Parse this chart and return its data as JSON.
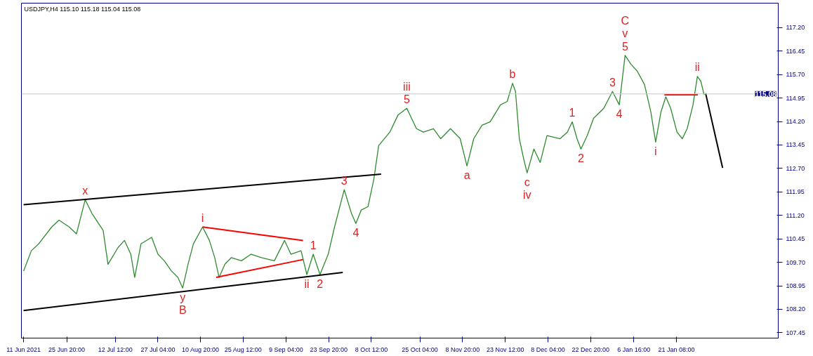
{
  "chart_data": {
    "type": "line",
    "title": "USDJPY,H4  115.10 115.18 115.04 115.08",
    "xlim": [
      "2021-06-10T06:00",
      "2022-02-25T07:00"
    ],
    "ylim": [
      107.28,
      117.98
    ],
    "xticks": [
      {
        "value": "2021-06-11T00:00",
        "label": "11 Jun 2021"
      },
      {
        "value": "2021-06-25T20:00",
        "label": "25 Jun 20:00"
      },
      {
        "value": "2021-07-12T12:00",
        "label": "12 Jul 12:00"
      },
      {
        "value": "2021-07-27T04:00",
        "label": "27 Jul 04:00"
      },
      {
        "value": "2021-08-10T20:00",
        "label": "10 Aug 20:00"
      },
      {
        "value": "2021-08-25T12:00",
        "label": "25 Aug 12:00"
      },
      {
        "value": "2021-09-09T04:00",
        "label": "9 Sep 04:00"
      },
      {
        "value": "2021-09-23T20:00",
        "label": "23 Sep 20:00"
      },
      {
        "value": "2021-10-08T12:00",
        "label": "8 Oct 12:00"
      },
      {
        "value": "2021-10-25T04:00",
        "label": "25 Oct 04:00"
      },
      {
        "value": "2021-11-08T20:00",
        "label": "8 Nov 20:00"
      },
      {
        "value": "2021-11-23T12:00",
        "label": "23 Nov 12:00"
      },
      {
        "value": "2021-12-08T04:00",
        "label": "8 Dec 04:00"
      },
      {
        "value": "2021-12-22T20:00",
        "label": "22 Dec 20:00"
      },
      {
        "value": "2022-01-06T16:00",
        "label": "6 Jan 16:00"
      },
      {
        "value": "2022-01-21T08:00",
        "label": "21 Jan 08:00"
      }
    ],
    "yticks": [
      {
        "value": 107.45,
        "label": "107.45"
      },
      {
        "value": 108.2,
        "label": "108.20"
      },
      {
        "value": 108.95,
        "label": "108.95"
      },
      {
        "value": 109.7,
        "label": "109.70"
      },
      {
        "value": 110.45,
        "label": "110.45"
      },
      {
        "value": 111.2,
        "label": "111.20"
      },
      {
        "value": 111.95,
        "label": "111.95"
      },
      {
        "value": 112.7,
        "label": "112.70"
      },
      {
        "value": 113.45,
        "label": "113.45"
      },
      {
        "value": 114.2,
        "label": "114.20"
      },
      {
        "value": 114.95,
        "label": "114.95"
      },
      {
        "value": 115.7,
        "label": "115.70"
      },
      {
        "value": 116.45,
        "label": "116.45"
      },
      {
        "value": 117.2,
        "label": "117.20"
      }
    ],
    "grid": false,
    "series": [
      {
        "color": "#2e8b2e",
        "x": [
          "2021-06-11T00:00",
          "2021-06-13T16:00",
          "2021-06-16T04:00",
          "2021-06-20T16:00",
          "2021-06-23T04:00",
          "2021-06-26T16:00",
          "2021-06-29T04:00",
          "2021-07-02T04:00",
          "2021-07-04T12:00",
          "2021-07-08T08:00",
          "2021-07-10T00:00",
          "2021-07-13T12:00",
          "2021-07-15T16:00",
          "2021-07-17T20:00",
          "2021-07-19T04:00",
          "2021-07-21T08:00",
          "2021-07-25T00:00",
          "2021-07-27T04:00",
          "2021-07-29T08:00",
          "2021-07-31T20:00",
          "2021-08-03T00:00",
          "2021-08-04T16:00",
          "2021-08-06T12:00",
          "2021-08-08T08:00",
          "2021-08-11T12:00",
          "2021-08-13T20:00",
          "2021-08-15T16:00",
          "2021-08-17T04:00",
          "2021-08-19T04:00",
          "2021-08-21T08:00",
          "2021-08-24T20:00",
          "2021-08-28T04:00",
          "2021-08-31T16:00",
          "2021-09-05T04:00",
          "2021-09-08T16:00",
          "2021-09-10T20:00",
          "2021-09-14T08:00",
          "2021-09-16T08:00",
          "2021-09-18T12:00",
          "2021-09-20T20:00",
          "2021-09-23T16:00",
          "2021-09-25T20:00",
          "2021-09-29T04:00",
          "2021-10-01T16:00",
          "2021-10-03T04:00",
          "2021-10-05T00:00",
          "2021-10-07T08:00",
          "2021-10-09T08:00",
          "2021-10-11T00:00",
          "2021-10-14T20:00",
          "2021-10-17T16:00",
          "2021-10-20T16:00",
          "2021-10-24T00:00",
          "2021-10-26T08:00",
          "2021-10-29T20:00",
          "2021-11-01T08:00",
          "2021-11-04T16:00",
          "2021-11-08T00:00",
          "2021-11-10T08:00",
          "2021-11-12T16:00",
          "2021-11-15T12:00",
          "2021-11-18T08:00",
          "2021-11-21T20:00",
          "2021-11-24T04:00",
          "2021-11-26T00:00",
          "2021-11-27T00:00",
          "2021-11-28T08:00",
          "2021-11-29T20:00",
          "2021-12-01T00:00",
          "2021-12-03T08:00",
          "2021-12-05T12:00",
          "2021-12-07T20:00",
          "2021-12-12T08:00",
          "2021-12-14T20:00",
          "2021-12-16T12:00",
          "2021-12-18T04:00",
          "2021-12-19T12:00",
          "2021-12-21T16:00",
          "2021-12-23T20:00",
          "2021-12-27T08:00",
          "2021-12-30T08:00",
          "2022-01-01T16:00",
          "2022-01-03T16:00",
          "2022-01-05T16:00",
          "2022-01-07T20:00",
          "2022-01-10T08:00",
          "2022-01-12T12:00",
          "2022-01-14T04:00",
          "2022-01-16T00:00",
          "2022-01-17T16:00",
          "2022-01-19T08:00",
          "2022-01-21T12:00",
          "2022-01-23T08:00",
          "2022-01-25T00:00",
          "2022-01-27T00:00",
          "2022-01-28T12:00",
          "2022-01-29T16:00",
          "2022-01-30T20:00"
        ],
        "values": [
          109.42,
          110.07,
          110.29,
          110.83,
          111.05,
          110.83,
          110.61,
          111.7,
          111.26,
          110.72,
          109.64,
          110.18,
          110.4,
          109.96,
          109.22,
          110.29,
          110.5,
          109.96,
          109.75,
          109.42,
          109.22,
          108.88,
          109.64,
          110.29,
          110.83,
          110.4,
          109.85,
          109.22,
          109.64,
          109.85,
          109.75,
          109.96,
          109.85,
          109.75,
          110.4,
          109.96,
          110.07,
          109.31,
          109.96,
          109.31,
          109.96,
          110.83,
          112.02,
          111.26,
          110.94,
          111.37,
          111.48,
          112.35,
          113.43,
          113.86,
          114.41,
          114.62,
          113.97,
          113.86,
          113.97,
          113.65,
          113.97,
          113.65,
          112.78,
          113.65,
          114.08,
          114.19,
          114.73,
          114.84,
          115.42,
          115.16,
          113.65,
          113.0,
          112.56,
          113.32,
          112.89,
          113.75,
          113.65,
          113.86,
          114.19,
          113.65,
          113.32,
          113.75,
          114.3,
          114.62,
          115.16,
          114.73,
          116.31,
          116.03,
          115.81,
          115.38,
          114.51,
          113.54,
          114.51,
          114.99,
          114.62,
          113.86,
          113.65,
          113.97,
          114.73,
          115.64,
          115.49,
          115.05
        ]
      },
      {
        "color": "#000000",
        "x": [
          "2021-06-11T00:00",
          "2021-10-11T20:00"
        ],
        "values": [
          111.54,
          112.52
        ]
      },
      {
        "color": "#000000",
        "x": [
          "2021-06-11T00:00",
          "2021-09-28T16:00"
        ],
        "values": [
          108.16,
          109.38
        ]
      },
      {
        "color": "#ff0000",
        "x": [
          "2021-08-11T12:00",
          "2021-09-15T00:00"
        ],
        "values": [
          110.83,
          110.4
        ]
      },
      {
        "color": "#ff0000",
        "x": [
          "2021-08-16T04:00",
          "2021-09-15T00:00"
        ],
        "values": [
          109.22,
          109.79
        ]
      },
      {
        "color": "#ff0000",
        "x": [
          "2022-01-17T04:00",
          "2022-01-28T16:00"
        ],
        "values": [
          115.05,
          115.05
        ]
      },
      {
        "color": "#000000",
        "x": [
          "2022-01-31T08:00",
          "2022-02-06T04:00"
        ],
        "values": [
          115.1,
          112.72
        ]
      }
    ],
    "ref_lines": [
      {
        "axis": "y",
        "value": 115.08,
        "label": "115.08",
        "color": "#c8c8c8"
      }
    ],
    "annotations": [
      {
        "text": "x",
        "x": "2021-07-02T04:00",
        "y": 111.7
      },
      {
        "text": "y",
        "x": "2021-08-04T16:00",
        "y": 108.88
      },
      {
        "text": "B",
        "x": "2021-08-04T16:00",
        "y": 108.88
      },
      {
        "text": "i",
        "x": "2021-08-11T12:00",
        "y": 110.83
      },
      {
        "text": "ii",
        "x": "2021-09-16T08:00",
        "y": 109.31
      },
      {
        "text": "1",
        "x": "2021-09-18T12:00",
        "y": 109.96
      },
      {
        "text": "2",
        "x": "2021-09-20T20:00",
        "y": 109.31
      },
      {
        "text": "3",
        "x": "2021-09-29T04:00",
        "y": 112.02
      },
      {
        "text": "4",
        "x": "2021-10-03T04:00",
        "y": 110.94
      },
      {
        "text": "5",
        "x": "2021-10-20T16:00",
        "y": 114.62
      },
      {
        "text": "iii",
        "x": "2021-10-20T16:00",
        "y": 114.62
      },
      {
        "text": "a",
        "x": "2021-11-10T08:00",
        "y": 112.78
      },
      {
        "text": "b",
        "x": "2021-11-26T00:00",
        "y": 115.42
      },
      {
        "text": "c",
        "x": "2021-12-01T00:00",
        "y": 112.56
      },
      {
        "text": "iv",
        "x": "2021-12-01T00:00",
        "y": 112.56
      },
      {
        "text": "1",
        "x": "2021-12-16T12:00",
        "y": 114.19
      },
      {
        "text": "2",
        "x": "2021-12-19T12:00",
        "y": 113.32
      },
      {
        "text": "3",
        "x": "2021-12-30T08:00",
        "y": 115.16
      },
      {
        "text": "4",
        "x": "2022-01-01T16:00",
        "y": 114.73
      },
      {
        "text": "5",
        "x": "2022-01-03T16:00",
        "y": 116.31
      },
      {
        "text": "v",
        "x": "2022-01-03T16:00",
        "y": 116.31
      },
      {
        "text": "C",
        "x": "2022-01-03T16:00",
        "y": 116.31
      },
      {
        "text": "i",
        "x": "2022-01-14T04:00",
        "y": 113.54
      },
      {
        "text": "ii",
        "x": "2022-01-28T12:00",
        "y": 115.64
      }
    ]
  }
}
